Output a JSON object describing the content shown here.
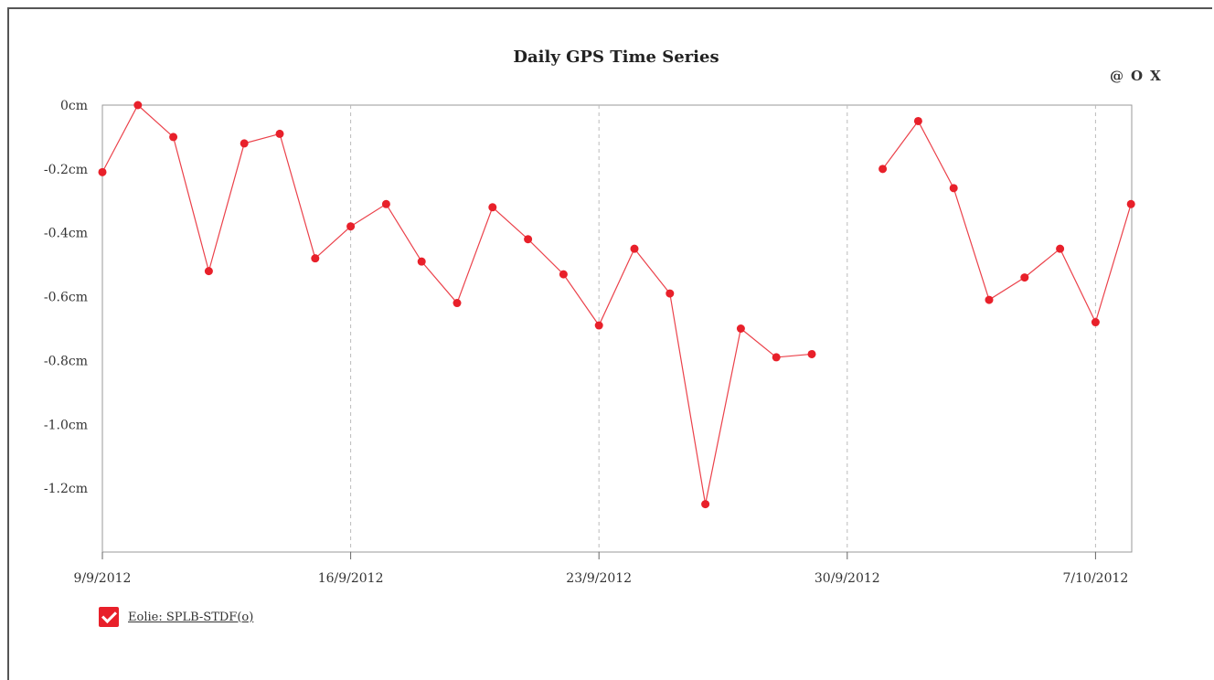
{
  "chart_data": {
    "type": "line",
    "title": "Daily GPS Time Series",
    "xlabel": "",
    "ylabel": "",
    "x_ticks": [
      "9/9/2012",
      "16/9/2012",
      "23/9/2012",
      "30/9/2012",
      "7/10/2012"
    ],
    "y_ticks": [
      "0cm",
      "-0.2cm",
      "-0.4cm",
      "-0.6cm",
      "-0.8cm",
      "-1.0cm",
      "-1.2cm"
    ],
    "y_tick_values": [
      0,
      -0.2,
      -0.4,
      -0.6,
      -0.8,
      -1.0,
      -1.2
    ],
    "ylim": [
      -1.4,
      0
    ],
    "xlim": [
      "9/9/2012",
      "8/10/2012"
    ],
    "grid": "vertical dashed at x ticks",
    "series": [
      {
        "name": "Eolie: SPLB-STDF(o)",
        "color": "#e8202a",
        "x": [
          "9/9/2012",
          "10/9/2012",
          "11/9/2012",
          "12/9/2012",
          "13/9/2012",
          "14/9/2012",
          "15/9/2012",
          "16/9/2012",
          "17/9/2012",
          "18/9/2012",
          "19/9/2012",
          "20/9/2012",
          "21/9/2012",
          "22/9/2012",
          "23/9/2012",
          "24/9/2012",
          "25/9/2012",
          "26/9/2012",
          "27/9/2012",
          "28/9/2012",
          "29/9/2012",
          "30/9/2012",
          "1/10/2012",
          "2/10/2012",
          "3/10/2012",
          "4/10/2012",
          "5/10/2012",
          "6/10/2012",
          "7/10/2012",
          "8/10/2012"
        ],
        "y": [
          -0.21,
          0.0,
          -0.1,
          -0.52,
          -0.12,
          -0.09,
          -0.48,
          -0.38,
          -0.31,
          -0.49,
          -0.62,
          -0.32,
          -0.42,
          -0.53,
          -0.69,
          -0.45,
          -0.59,
          -1.25,
          -0.7,
          -0.79,
          -0.78,
          null,
          -0.2,
          -0.05,
          -0.26,
          -0.61,
          -0.54,
          -0.45,
          -0.68,
          -0.31
        ]
      }
    ],
    "legend": {
      "position": "bottom-left",
      "checked": true
    }
  },
  "zoom": {
    "icon": "@",
    "out_label": "O",
    "reset_label": "X"
  }
}
